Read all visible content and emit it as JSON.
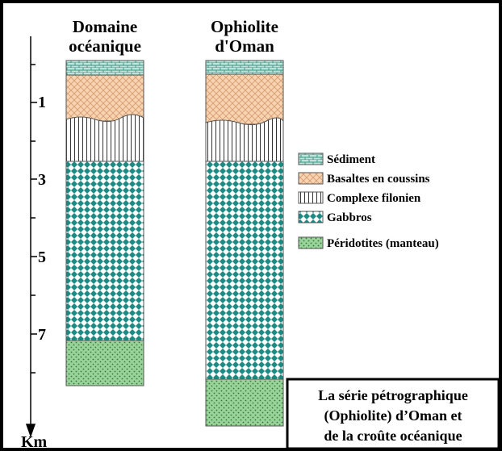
{
  "columns": [
    {
      "title": [
        "Domaine",
        "océanique"
      ]
    },
    {
      "title": [
        "Ophiolite",
        "d'Oman"
      ]
    }
  ],
  "axis": {
    "labels": [
      "1",
      "3",
      "5",
      "7"
    ],
    "unit": "Km"
  },
  "legend": [
    "Sédiment",
    "Basaltes en coussins",
    "Complexe filonien",
    "Gabbros",
    "Péridotites (manteau)"
  ],
  "caption": [
    "La série pétrographique",
    "(Ophiolite) d’Oman et",
    "de la croûte océanique"
  ]
}
